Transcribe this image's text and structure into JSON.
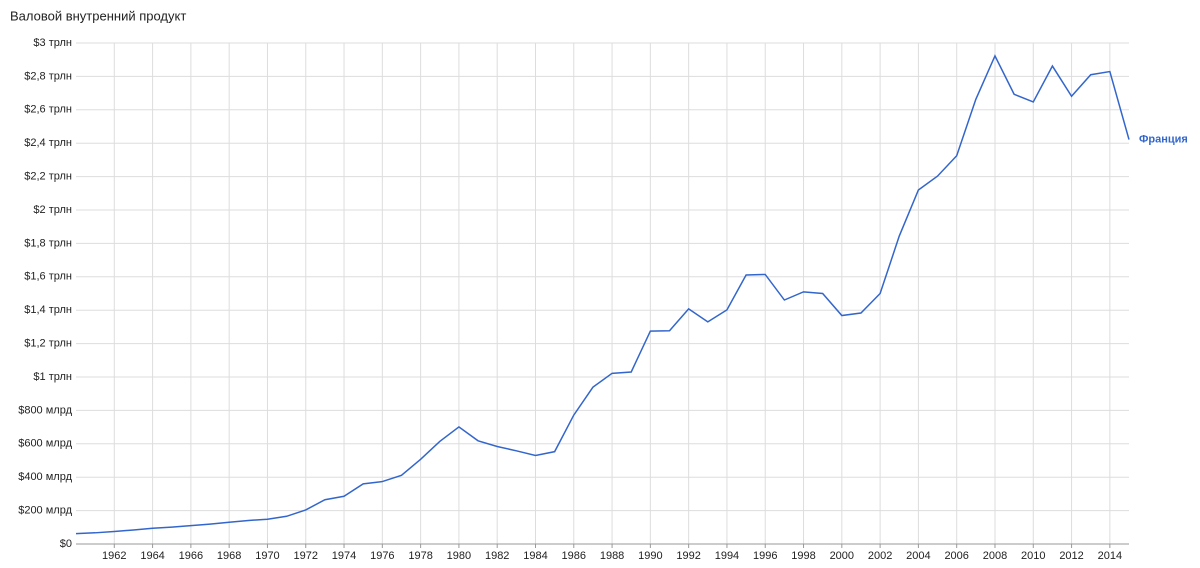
{
  "chart_data": {
    "type": "line",
    "title": "Валовой внутренний продукт",
    "x": [
      1960,
      1961,
      1962,
      1963,
      1964,
      1965,
      1966,
      1967,
      1968,
      1969,
      1970,
      1971,
      1972,
      1973,
      1974,
      1975,
      1976,
      1977,
      1978,
      1979,
      1980,
      1981,
      1982,
      1983,
      1984,
      1985,
      1986,
      1987,
      1988,
      1989,
      1990,
      1991,
      1992,
      1993,
      1994,
      1995,
      1996,
      1997,
      1998,
      1999,
      2000,
      2001,
      2002,
      2003,
      2004,
      2005,
      2006,
      2007,
      2008,
      2009,
      2010,
      2011,
      2012,
      2013,
      2014,
      2015
    ],
    "series": [
      {
        "name": "Франция",
        "color": "#3366cc",
        "values": [
          62,
          67,
          75,
          84,
          94,
          101,
          110,
          119,
          130,
          141,
          148,
          166,
          204,
          265,
          286,
          360,
          374,
          411,
          507,
          614,
          701,
          618,
          584,
          558,
          530,
          553,
          772,
          939,
          1022,
          1030,
          1275,
          1277,
          1408,
          1330,
          1402,
          1611,
          1614,
          1461,
          1510,
          1500,
          1368,
          1383,
          1500,
          1844,
          2120,
          2203,
          2325,
          2663,
          2923,
          2693,
          2647,
          2862,
          2681,
          2810,
          2829,
          2422
        ]
      }
    ],
    "xlim": [
      1960,
      2015
    ],
    "xticks": [
      1962,
      1964,
      1966,
      1968,
      1970,
      1972,
      1974,
      1976,
      1978,
      1980,
      1982,
      1984,
      1986,
      1988,
      1990,
      1992,
      1994,
      1996,
      1998,
      2000,
      2002,
      2004,
      2006,
      2008,
      2010,
      2012,
      2014
    ],
    "ylim": [
      0,
      3000
    ],
    "yticks": [
      {
        "value": 0,
        "label": "$0"
      },
      {
        "value": 200,
        "label": "$200 млрд"
      },
      {
        "value": 400,
        "label": "$400 млрд"
      },
      {
        "value": 600,
        "label": "$600 млрд"
      },
      {
        "value": 800,
        "label": "$800 млрд"
      },
      {
        "value": 1000,
        "label": "$1 трлн"
      },
      {
        "value": 1200,
        "label": "$1,2 трлн"
      },
      {
        "value": 1400,
        "label": "$1,4 трлн"
      },
      {
        "value": 1600,
        "label": "$1,6 трлн"
      },
      {
        "value": 1800,
        "label": "$1,8 трлн"
      },
      {
        "value": 2000,
        "label": "$2 трлн"
      },
      {
        "value": 2200,
        "label": "$2,2 трлн"
      },
      {
        "value": 2400,
        "label": "$2,4 трлн"
      },
      {
        "value": 2600,
        "label": "$2,6 трлн"
      },
      {
        "value": 2800,
        "label": "$2,8 трлн"
      },
      {
        "value": 3000,
        "label": "$3 трлн"
      }
    ],
    "grid": true
  }
}
